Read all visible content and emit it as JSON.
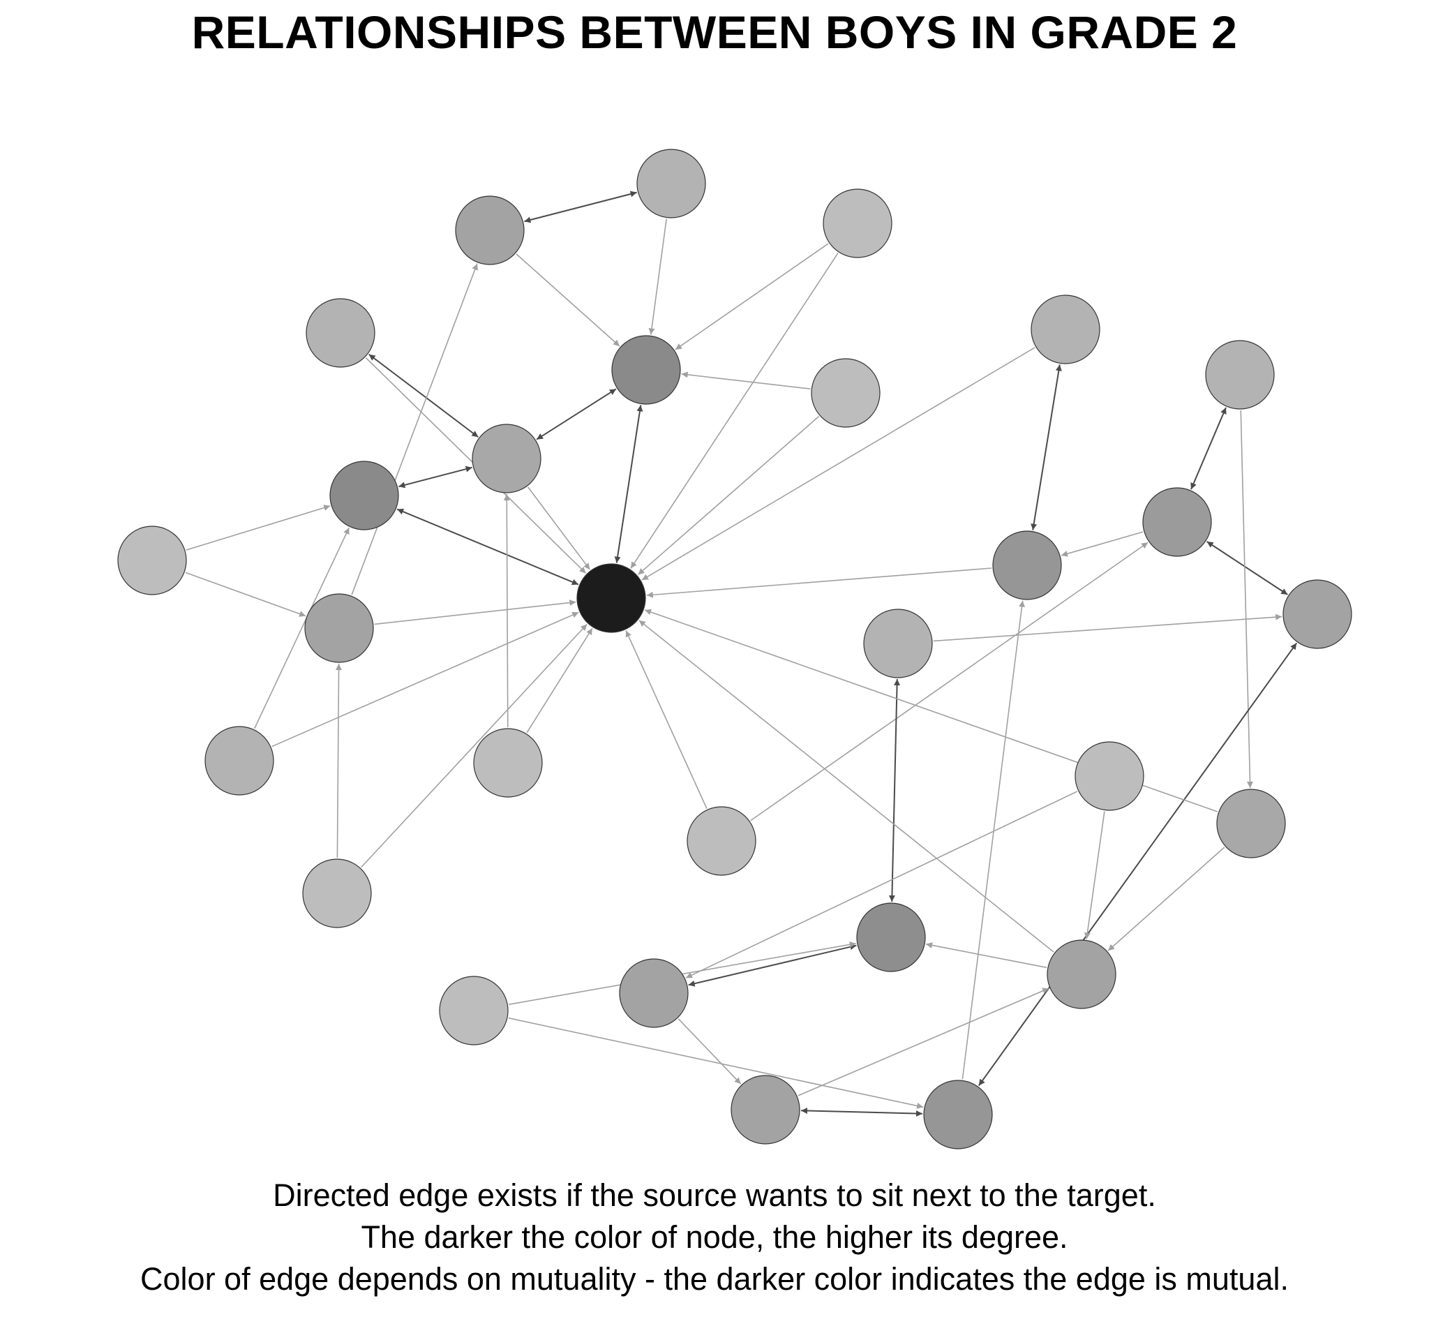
{
  "title": "RELATIONSHIPS BETWEEN BOYS IN GRADE 2",
  "caption": [
    "Directed edge exists if the source wants to sit next to the target.",
    "The darker the color of node, the higher its degree.",
    "Color of edge depends on mutuality - the darker color indicates the edge is mutual."
  ],
  "colors": {
    "mutual_edge": "#4a4a4a",
    "one_way_edge": "#a0a0a0",
    "node_stroke": "#333333",
    "background": "#ffffff"
  },
  "graph": {
    "directed": true,
    "nodes": [
      {
        "id": "n1",
        "color": "#b3b3b3"
      },
      {
        "id": "n2",
        "color": "#a3a3a3"
      },
      {
        "id": "n3",
        "color": "#bdbdbd"
      },
      {
        "id": "n4",
        "color": "#b3b3b3"
      },
      {
        "id": "n5",
        "color": "#8a8a8a"
      },
      {
        "id": "n6",
        "color": "#bdbdbd"
      },
      {
        "id": "n7",
        "color": "#a8a8a8"
      },
      {
        "id": "n8",
        "color": "#8a8a8a"
      },
      {
        "id": "n9",
        "color": "#bdbdbd"
      },
      {
        "id": "n10",
        "color": "#1c1c1c"
      },
      {
        "id": "n11",
        "color": "#a3a3a3"
      },
      {
        "id": "n12",
        "color": "#b3b3b3"
      },
      {
        "id": "n13",
        "color": "#bdbdbd"
      },
      {
        "id": "n14",
        "color": "#bdbdbd"
      },
      {
        "id": "n15",
        "color": "#bdbdbd"
      },
      {
        "id": "n16",
        "color": "#b3b3b3"
      },
      {
        "id": "n17",
        "color": "#969696"
      },
      {
        "id": "n18",
        "color": "#b3b3b3"
      },
      {
        "id": "n19",
        "color": "#9b9b9b"
      },
      {
        "id": "n20",
        "color": "#a3a3a3"
      },
      {
        "id": "n21",
        "color": "#b3b3b3"
      },
      {
        "id": "n22",
        "color": "#bdbdbd"
      },
      {
        "id": "n23",
        "color": "#a8a8a8"
      },
      {
        "id": "n24",
        "color": "#8e8e8e"
      },
      {
        "id": "n25",
        "color": "#a3a3a3"
      },
      {
        "id": "n26",
        "color": "#a3a3a3"
      },
      {
        "id": "n27",
        "color": "#bdbdbd"
      },
      {
        "id": "n28",
        "color": "#a3a3a3"
      },
      {
        "id": "n29",
        "color": "#969696"
      },
      {
        "id": "n30",
        "color": "#a3a3a3"
      }
    ],
    "edges": [
      {
        "from": "n1",
        "to": "n2",
        "mutual": true
      },
      {
        "from": "n1",
        "to": "n5",
        "mutual": false
      },
      {
        "from": "n2",
        "to": "n5",
        "mutual": false
      },
      {
        "from": "n3",
        "to": "n5",
        "mutual": false
      },
      {
        "from": "n3",
        "to": "n10",
        "mutual": false
      },
      {
        "from": "n6",
        "to": "n5",
        "mutual": false
      },
      {
        "from": "n6",
        "to": "n10",
        "mutual": false
      },
      {
        "from": "n4",
        "to": "n7",
        "mutual": true
      },
      {
        "from": "n4",
        "to": "n10",
        "mutual": false
      },
      {
        "from": "n7",
        "to": "n5",
        "mutual": true
      },
      {
        "from": "n7",
        "to": "n8",
        "mutual": true
      },
      {
        "from": "n7",
        "to": "n10",
        "mutual": false
      },
      {
        "from": "n8",
        "to": "n10",
        "mutual": true
      },
      {
        "from": "n10",
        "to": "n5",
        "mutual": true
      },
      {
        "from": "n9",
        "to": "n8",
        "mutual": false
      },
      {
        "from": "n9",
        "to": "n11",
        "mutual": false
      },
      {
        "from": "n11",
        "to": "n10",
        "mutual": false
      },
      {
        "from": "n11",
        "to": "n2",
        "mutual": false
      },
      {
        "from": "n12",
        "to": "n8",
        "mutual": false
      },
      {
        "from": "n12",
        "to": "n10",
        "mutual": false
      },
      {
        "from": "n13",
        "to": "n7",
        "mutual": false
      },
      {
        "from": "n13",
        "to": "n10",
        "mutual": false
      },
      {
        "from": "n14",
        "to": "n11",
        "mutual": false
      },
      {
        "from": "n14",
        "to": "n10",
        "mutual": false
      },
      {
        "from": "n15",
        "to": "n10",
        "mutual": false
      },
      {
        "from": "n15",
        "to": "n19",
        "mutual": false
      },
      {
        "from": "n16",
        "to": "n10",
        "mutual": false
      },
      {
        "from": "n16",
        "to": "n17",
        "mutual": true
      },
      {
        "from": "n17",
        "to": "n10",
        "mutual": false
      },
      {
        "from": "n19",
        "to": "n17",
        "mutual": false
      },
      {
        "from": "n19",
        "to": "n18",
        "mutual": true
      },
      {
        "from": "n19",
        "to": "n20",
        "mutual": true
      },
      {
        "from": "n18",
        "to": "n23",
        "mutual": false
      },
      {
        "from": "n20",
        "to": "n29",
        "mutual": true
      },
      {
        "from": "n29",
        "to": "n17",
        "mutual": false
      },
      {
        "from": "n29",
        "to": "n28",
        "mutual": true
      },
      {
        "from": "n21",
        "to": "n24",
        "mutual": true
      },
      {
        "from": "n21",
        "to": "n20",
        "mutual": false
      },
      {
        "from": "n22",
        "to": "n25",
        "mutual": false
      },
      {
        "from": "n22",
        "to": "n26",
        "mutual": false
      },
      {
        "from": "n25",
        "to": "n24",
        "mutual": false
      },
      {
        "from": "n25",
        "to": "n10",
        "mutual": false
      },
      {
        "from": "n23",
        "to": "n25",
        "mutual": false
      },
      {
        "from": "n23",
        "to": "n10",
        "mutual": false
      },
      {
        "from": "n24",
        "to": "n26",
        "mutual": true
      },
      {
        "from": "n26",
        "to": "n28",
        "mutual": false
      },
      {
        "from": "n27",
        "to": "n24",
        "mutual": false
      },
      {
        "from": "n27",
        "to": "n29",
        "mutual": false
      },
      {
        "from": "n28",
        "to": "n25",
        "mutual": false
      }
    ]
  }
}
